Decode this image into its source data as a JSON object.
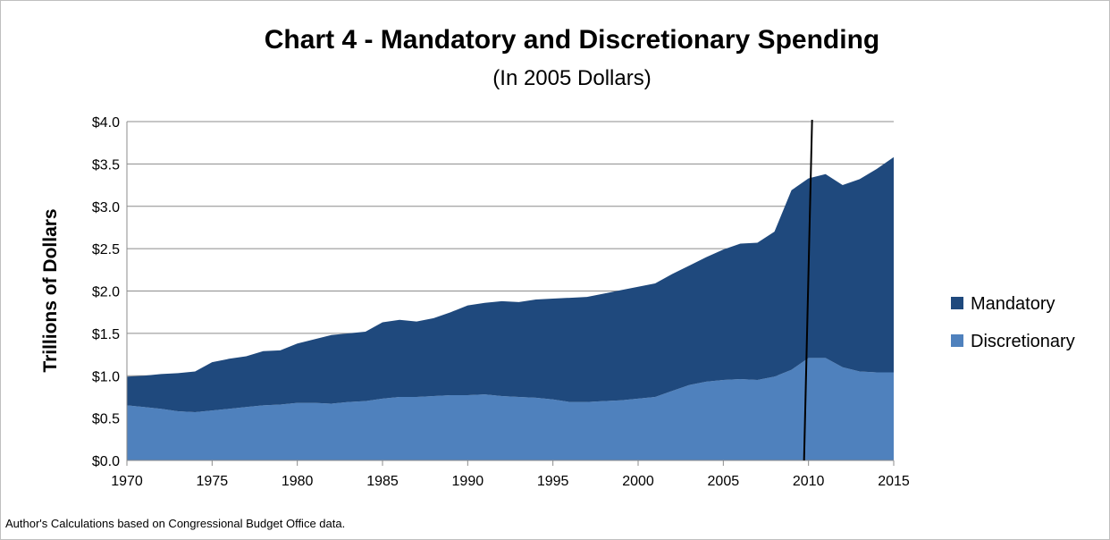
{
  "chart_data": {
    "type": "area",
    "stacked": true,
    "title": "Chart 4 - Mandatory and Discretionary Spending",
    "subtitle": "(In 2005 Dollars)",
    "ylabel": "Trillions of Dollars",
    "xlabel": "",
    "xlim": [
      1970,
      2015
    ],
    "ylim": [
      0,
      4.0
    ],
    "grid": true,
    "legend_position": "right",
    "xticks": [
      "1970",
      "1975",
      "1980",
      "1985",
      "1990",
      "1995",
      "2000",
      "2005",
      "2010",
      "2015"
    ],
    "yticks": [
      "$0.0",
      "$0.5",
      "$1.0",
      "$1.5",
      "$2.0",
      "$2.5",
      "$3.0",
      "$3.5",
      "$4.0"
    ],
    "x": [
      1970,
      1971,
      1972,
      1973,
      1974,
      1975,
      1976,
      1977,
      1978,
      1979,
      1980,
      1981,
      1982,
      1983,
      1984,
      1985,
      1986,
      1987,
      1988,
      1989,
      1990,
      1991,
      1992,
      1993,
      1994,
      1995,
      1996,
      1997,
      1998,
      1999,
      2000,
      2001,
      2002,
      2003,
      2004,
      2005,
      2006,
      2007,
      2008,
      2009,
      2010,
      2011,
      2012,
      2013,
      2014,
      2015
    ],
    "series": [
      {
        "name": "Discretionary",
        "color": "#4f81bd",
        "values": [
          0.65,
          0.63,
          0.61,
          0.58,
          0.57,
          0.59,
          0.61,
          0.63,
          0.65,
          0.66,
          0.68,
          0.68,
          0.67,
          0.69,
          0.7,
          0.73,
          0.75,
          0.75,
          0.76,
          0.77,
          0.77,
          0.78,
          0.76,
          0.75,
          0.74,
          0.72,
          0.69,
          0.69,
          0.7,
          0.71,
          0.73,
          0.75,
          0.82,
          0.89,
          0.93,
          0.95,
          0.96,
          0.95,
          0.99,
          1.07,
          1.21,
          1.21,
          1.1,
          1.05,
          1.04,
          1.04
        ]
      },
      {
        "name": "Mandatory",
        "color": "#1f497d",
        "values": [
          0.34,
          0.37,
          0.41,
          0.45,
          0.48,
          0.57,
          0.59,
          0.6,
          0.64,
          0.64,
          0.7,
          0.75,
          0.81,
          0.81,
          0.82,
          0.9,
          0.91,
          0.89,
          0.92,
          0.98,
          1.06,
          1.08,
          1.12,
          1.12,
          1.16,
          1.19,
          1.23,
          1.24,
          1.27,
          1.3,
          1.32,
          1.34,
          1.38,
          1.41,
          1.47,
          1.54,
          1.6,
          1.62,
          1.71,
          2.12,
          2.12,
          2.17,
          2.15,
          2.27,
          2.4,
          2.54
        ]
      }
    ],
    "annotations": [
      {
        "type": "vertical-line",
        "x": 2010,
        "color": "#000000"
      }
    ]
  },
  "footnote": "Author's Calculations based on Congressional Budget Office data."
}
